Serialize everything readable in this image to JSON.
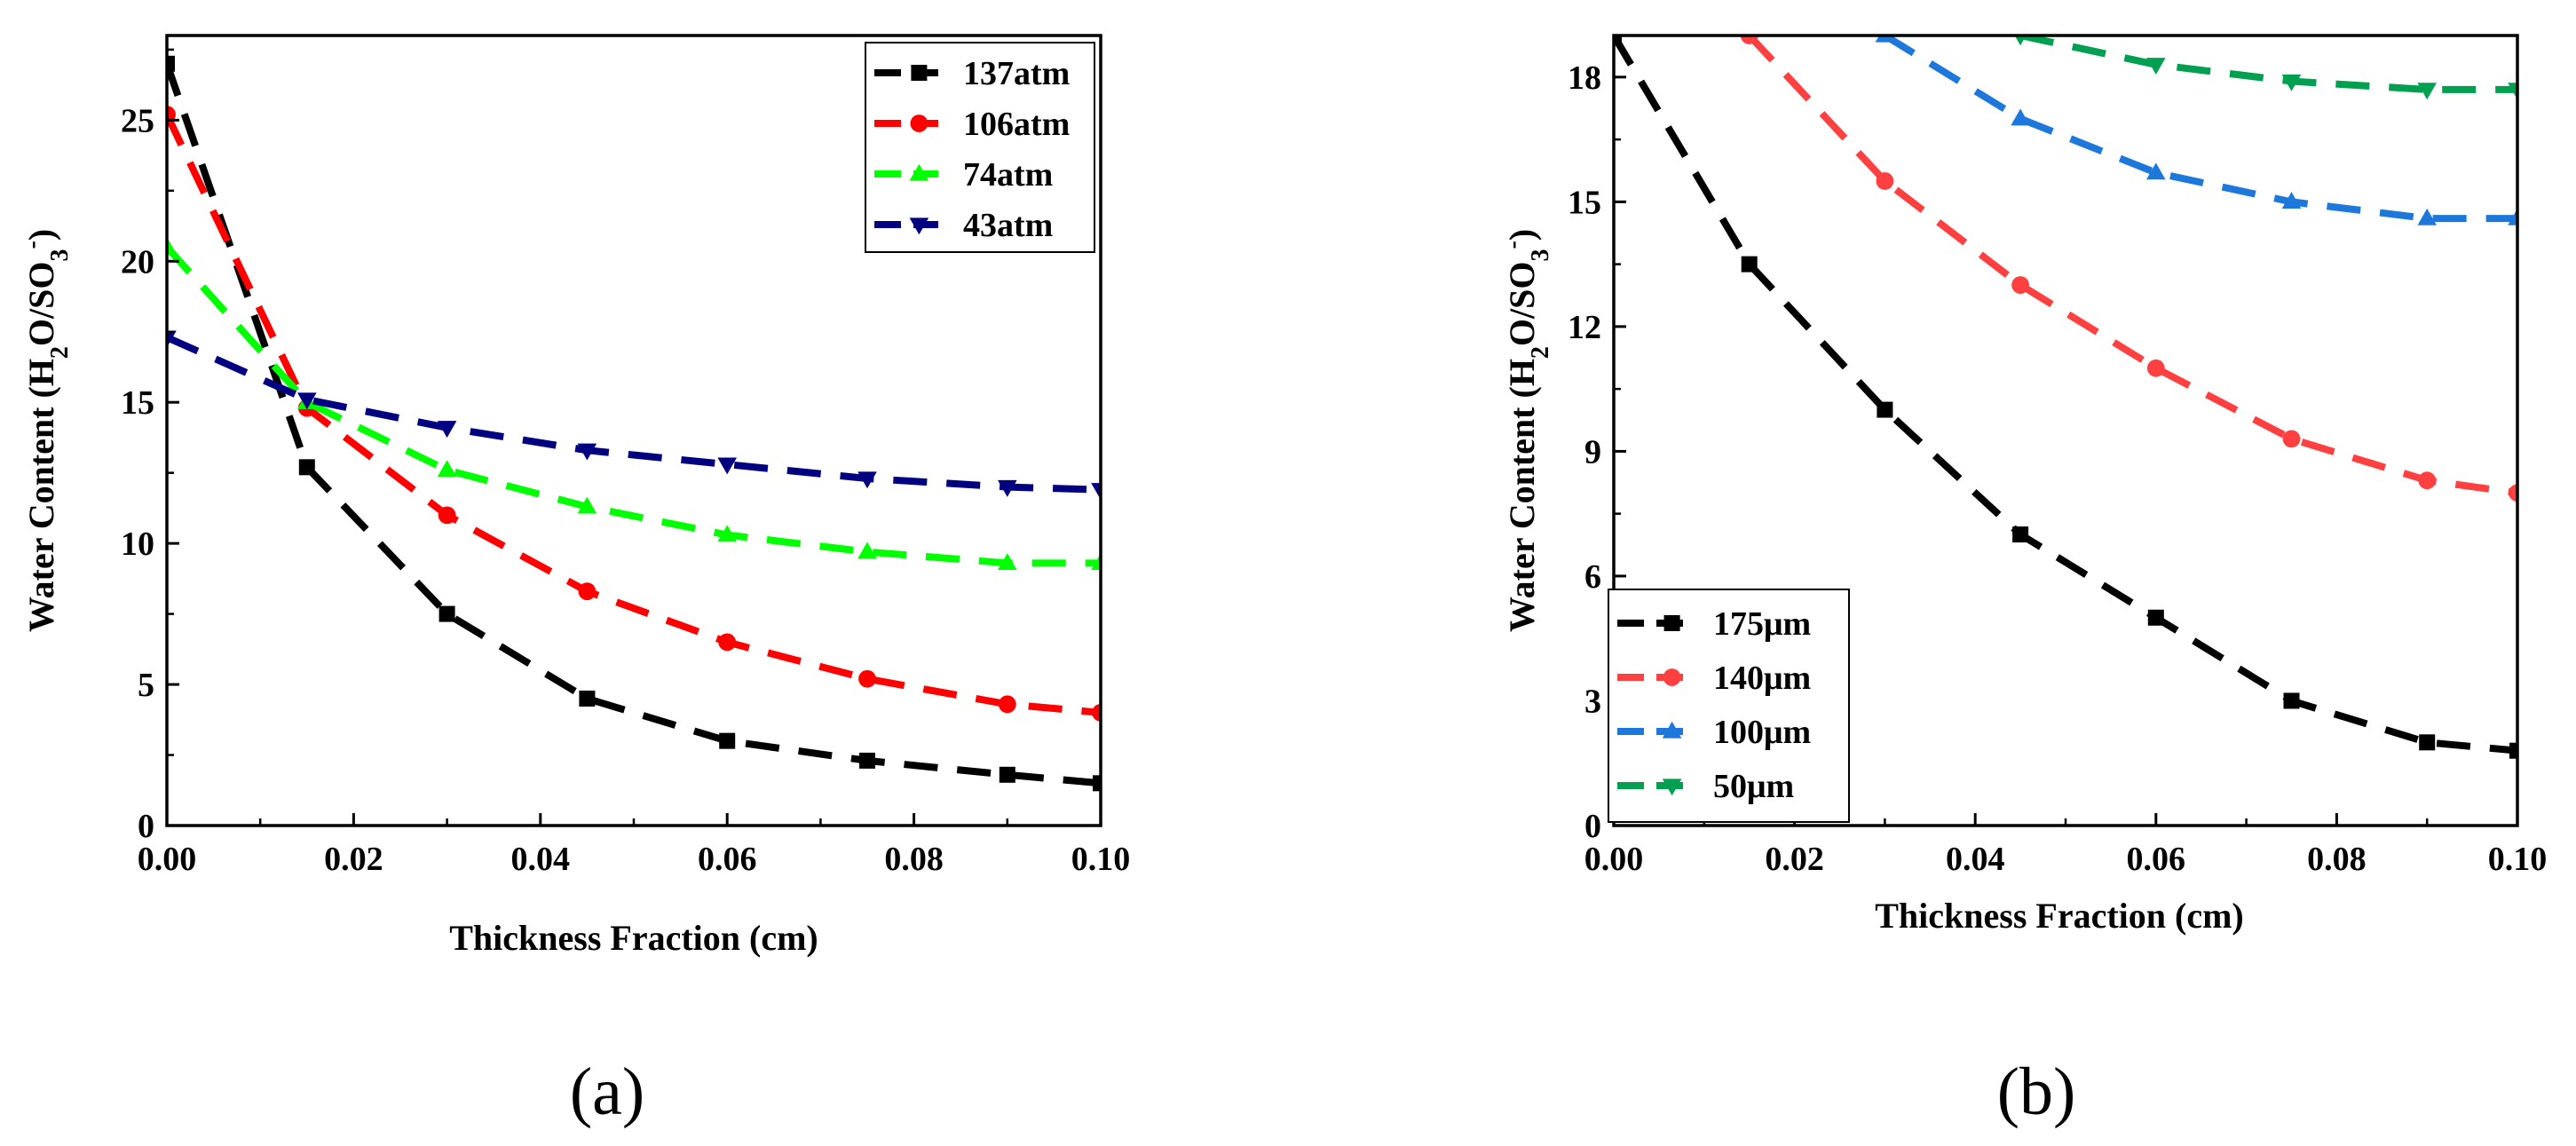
{
  "chart_data": [
    {
      "type": "line",
      "panel_label": "(a)",
      "xlabel": "Thickness Fraction (cm)",
      "ylabel": "Water Content (H2O/SO3-)",
      "ylabel_parts": {
        "pre": "Water Content (H",
        "sub1": "2",
        "mid": "O/SO",
        "sub2": "3",
        "sup": "-",
        "post": ")"
      },
      "xlim": [
        0,
        0.1
      ],
      "ylim": [
        0,
        28
      ],
      "xticks": [
        0.0,
        0.02,
        0.04,
        0.06,
        0.08,
        0.1
      ],
      "xtick_labels": [
        "0.00",
        "0.02",
        "0.04",
        "0.06",
        "0.08",
        "0.10"
      ],
      "yticks": [
        0,
        5,
        10,
        15,
        20,
        25
      ],
      "ytick_labels": [
        "0",
        "5",
        "10",
        "15",
        "20",
        "25"
      ],
      "legend_position": "top-right",
      "series": [
        {
          "name": "137atm",
          "color": "#000000",
          "marker": "square",
          "x": [
            0,
            0.015,
            0.03,
            0.045,
            0.06,
            0.075,
            0.09,
            0.1
          ],
          "y": [
            27.0,
            12.7,
            7.5,
            4.5,
            3.0,
            2.3,
            1.8,
            1.5
          ]
        },
        {
          "name": "106atm",
          "color": "#ff0000",
          "marker": "circle",
          "x": [
            0,
            0.015,
            0.03,
            0.045,
            0.06,
            0.075,
            0.09,
            0.1
          ],
          "y": [
            25.2,
            14.8,
            11.0,
            8.3,
            6.5,
            5.2,
            4.3,
            4.0
          ]
        },
        {
          "name": "74atm",
          "color": "#00ff00",
          "marker": "triangle-up",
          "x": [
            0,
            0.015,
            0.03,
            0.045,
            0.06,
            0.075,
            0.09,
            0.1
          ],
          "y": [
            20.5,
            15.0,
            12.6,
            11.3,
            10.3,
            9.7,
            9.3,
            9.3
          ]
        },
        {
          "name": "43atm",
          "color": "#000080",
          "marker": "triangle-down",
          "x": [
            0,
            0.015,
            0.03,
            0.045,
            0.06,
            0.075,
            0.09,
            0.1
          ],
          "y": [
            17.3,
            15.1,
            14.1,
            13.3,
            12.8,
            12.3,
            12.0,
            11.9
          ]
        }
      ]
    },
    {
      "type": "line",
      "panel_label": "(b)",
      "xlabel": "Thickness Fraction (cm)",
      "ylabel": "Water Content (H2O/SO3-)",
      "ylabel_parts": {
        "pre": "Water Content (H",
        "sub1": "2",
        "mid": "O/SO",
        "sub2": "3",
        "sup": "-",
        "post": ")"
      },
      "xlim": [
        0,
        0.1
      ],
      "ylim": [
        0,
        19
      ],
      "xticks": [
        0.0,
        0.02,
        0.04,
        0.06,
        0.08,
        0.1
      ],
      "xtick_labels": [
        "0.00",
        "0.02",
        "0.04",
        "0.06",
        "0.08",
        "0.10"
      ],
      "yticks": [
        0,
        3,
        6,
        9,
        12,
        15,
        18
      ],
      "ytick_labels": [
        "0",
        "3",
        "6",
        "9",
        "12",
        "15",
        "18"
      ],
      "legend_position": "bottom-left",
      "series": [
        {
          "name": "175μm",
          "color": "#000000",
          "marker": "square",
          "x": [
            0,
            0.015,
            0.03,
            0.045,
            0.06,
            0.075,
            0.09,
            0.1
          ],
          "y": [
            19.0,
            13.5,
            10.0,
            7.0,
            5.0,
            3.0,
            2.0,
            1.8
          ]
        },
        {
          "name": "140μm",
          "color": "#ff4040",
          "marker": "circle",
          "x": [
            0.015,
            0.03,
            0.045,
            0.06,
            0.075,
            0.09,
            0.1
          ],
          "y": [
            19.0,
            15.5,
            13.0,
            11.0,
            9.3,
            8.3,
            8.0
          ]
        },
        {
          "name": "100μm",
          "color": "#1e78dc",
          "marker": "triangle-up",
          "x": [
            0.03,
            0.045,
            0.06,
            0.075,
            0.09,
            0.1
          ],
          "y": [
            19.0,
            17.0,
            15.7,
            15.0,
            14.6,
            14.6
          ]
        },
        {
          "name": "50μm",
          "color": "#00a050",
          "marker": "triangle-down",
          "x": [
            0.045,
            0.06,
            0.075,
            0.09,
            0.1
          ],
          "y": [
            19.0,
            18.3,
            17.9,
            17.7,
            17.7
          ]
        }
      ]
    }
  ]
}
